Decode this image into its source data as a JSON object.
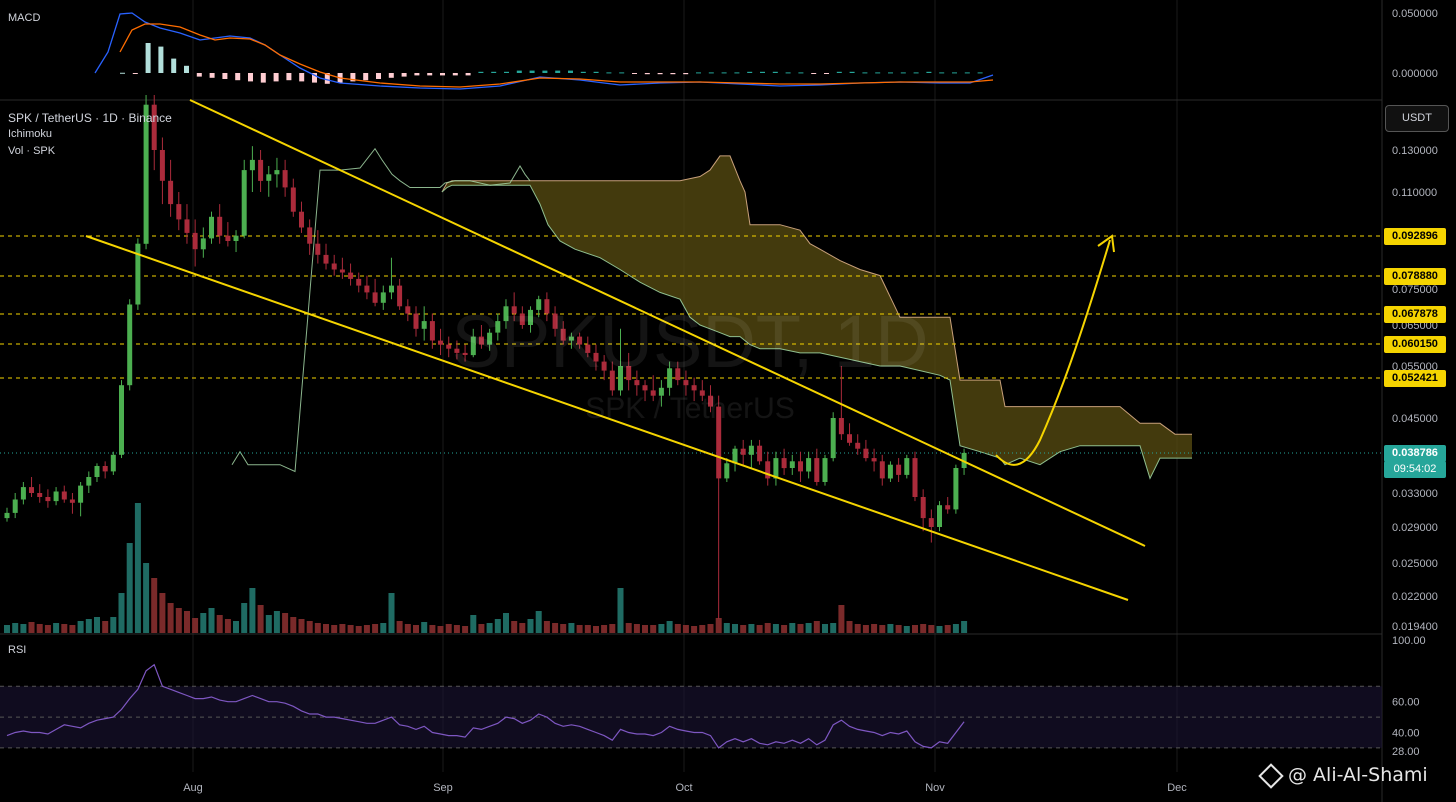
{
  "panels": {
    "macd_label": "MACD",
    "rsi_label": "RSI",
    "main_title": "SPK / TetherUS · 1D · Binance",
    "ichimoku_label": "Ichimoku",
    "vol_label": "Vol · SPK",
    "watermark_symbol": "SPKUSDT, 1D",
    "watermark_name": "SPK / TetherUS",
    "currency_button": "USDT",
    "credit": "@ Ali-Al-Shami"
  },
  "chart_data": {
    "type": "candlestick",
    "title": "SPK / TetherUS · 1D · Binance",
    "price_axis_ticks": [
      "0.130000",
      "0.110000",
      "0.092896",
      "0.078880",
      "0.075000",
      "0.067878",
      "0.065000",
      "0.060150",
      "0.055000",
      "0.052421",
      "0.045000",
      "0.038786",
      "0.033000",
      "0.029000",
      "0.025000",
      "0.022000",
      "0.019400"
    ],
    "price_axis_plain": [
      {
        "v": 0.13,
        "t": "0.130000"
      },
      {
        "v": 0.11,
        "t": "0.110000"
      },
      {
        "v": 0.075,
        "t": "0.075000"
      },
      {
        "v": 0.065,
        "t": "0.065000"
      },
      {
        "v": 0.055,
        "t": "0.055000"
      },
      {
        "v": 0.045,
        "t": "0.045000"
      },
      {
        "v": 0.033,
        "t": "0.033000"
      },
      {
        "v": 0.029,
        "t": "0.029000"
      },
      {
        "v": 0.025,
        "t": "0.025000"
      },
      {
        "v": 0.022,
        "t": "0.022000"
      },
      {
        "v": 0.0194,
        "t": "0.019400"
      }
    ],
    "levels": [
      {
        "v": 0.092896,
        "t": "0.092896"
      },
      {
        "v": 0.07888,
        "t": "0.078880"
      },
      {
        "v": 0.067878,
        "t": "0.067878"
      },
      {
        "v": 0.06015,
        "t": "0.060150"
      },
      {
        "v": 0.052421,
        "t": "0.052421"
      }
    ],
    "current_price": {
      "v": 0.038786,
      "t": "0.038786",
      "countdown": "09:54:02"
    },
    "macd_axis": [
      {
        "v": 0.05,
        "t": "0.050000"
      },
      {
        "v": 0.0,
        "t": "0.000000"
      }
    ],
    "rsi_axis": [
      {
        "v": 100,
        "t": "100.00"
      },
      {
        "v": 60,
        "t": "60.00"
      },
      {
        "v": 40,
        "t": "40.00"
      },
      {
        "v": 28,
        "t": "28.00"
      }
    ],
    "x_ticks": [
      "Aug",
      "Sep",
      "Oct",
      "Nov",
      "Dec"
    ],
    "candles": [
      [
        0.03,
        0.0312,
        0.0296,
        0.0306
      ],
      [
        0.0306,
        0.033,
        0.03,
        0.0322
      ],
      [
        0.0322,
        0.0345,
        0.0316,
        0.0338
      ],
      [
        0.0338,
        0.0352,
        0.0325,
        0.033
      ],
      [
        0.033,
        0.0342,
        0.0318,
        0.0325
      ],
      [
        0.0325,
        0.0335,
        0.0312,
        0.032
      ],
      [
        0.032,
        0.0338,
        0.0315,
        0.0332
      ],
      [
        0.0332,
        0.034,
        0.0318,
        0.0322
      ],
      [
        0.0322,
        0.033,
        0.0305,
        0.0318
      ],
      [
        0.0318,
        0.0345,
        0.0302,
        0.034
      ],
      [
        0.034,
        0.036,
        0.033,
        0.0352
      ],
      [
        0.0352,
        0.0372,
        0.0345,
        0.0368
      ],
      [
        0.0368,
        0.0375,
        0.035,
        0.036
      ],
      [
        0.036,
        0.039,
        0.0355,
        0.0385
      ],
      [
        0.0385,
        0.052,
        0.038,
        0.051
      ],
      [
        0.051,
        0.072,
        0.05,
        0.0705
      ],
      [
        0.0705,
        0.092,
        0.069,
        0.09
      ],
      [
        0.09,
        0.18,
        0.088,
        0.17
      ],
      [
        0.17,
        0.19,
        0.12,
        0.13
      ],
      [
        0.13,
        0.14,
        0.105,
        0.115
      ],
      [
        0.115,
        0.125,
        0.1,
        0.105
      ],
      [
        0.105,
        0.11,
        0.095,
        0.099
      ],
      [
        0.099,
        0.105,
        0.09,
        0.094
      ],
      [
        0.094,
        0.099,
        0.082,
        0.088
      ],
      [
        0.088,
        0.096,
        0.085,
        0.092
      ],
      [
        0.092,
        0.102,
        0.09,
        0.1
      ],
      [
        0.1,
        0.105,
        0.09,
        0.093
      ],
      [
        0.093,
        0.098,
        0.089,
        0.091
      ],
      [
        0.091,
        0.095,
        0.087,
        0.093
      ],
      [
        0.093,
        0.125,
        0.092,
        0.12
      ],
      [
        0.12,
        0.133,
        0.11,
        0.125
      ],
      [
        0.125,
        0.13,
        0.11,
        0.115
      ],
      [
        0.115,
        0.122,
        0.108,
        0.118
      ],
      [
        0.118,
        0.126,
        0.112,
        0.12
      ],
      [
        0.12,
        0.125,
        0.108,
        0.112
      ],
      [
        0.112,
        0.116,
        0.1,
        0.102
      ],
      [
        0.102,
        0.106,
        0.094,
        0.096
      ],
      [
        0.096,
        0.099,
        0.086,
        0.09
      ],
      [
        0.09,
        0.095,
        0.083,
        0.086
      ],
      [
        0.086,
        0.09,
        0.081,
        0.083
      ],
      [
        0.083,
        0.086,
        0.079,
        0.081
      ],
      [
        0.081,
        0.085,
        0.078,
        0.08
      ],
      [
        0.08,
        0.083,
        0.076,
        0.078
      ],
      [
        0.078,
        0.08,
        0.074,
        0.076
      ],
      [
        0.076,
        0.079,
        0.072,
        0.074
      ],
      [
        0.074,
        0.078,
        0.07,
        0.071
      ],
      [
        0.071,
        0.076,
        0.069,
        0.074
      ],
      [
        0.074,
        0.085,
        0.072,
        0.076
      ],
      [
        0.076,
        0.078,
        0.069,
        0.07
      ],
      [
        0.07,
        0.072,
        0.066,
        0.068
      ],
      [
        0.068,
        0.07,
        0.062,
        0.064
      ],
      [
        0.064,
        0.07,
        0.061,
        0.066
      ],
      [
        0.066,
        0.068,
        0.059,
        0.061
      ],
      [
        0.061,
        0.064,
        0.0575,
        0.06
      ],
      [
        0.06,
        0.062,
        0.057,
        0.059
      ],
      [
        0.059,
        0.061,
        0.0565,
        0.058
      ],
      [
        0.058,
        0.06,
        0.056,
        0.0575
      ],
      [
        0.0575,
        0.064,
        0.057,
        0.062
      ],
      [
        0.062,
        0.065,
        0.059,
        0.06
      ],
      [
        0.06,
        0.064,
        0.0585,
        0.063
      ],
      [
        0.063,
        0.068,
        0.061,
        0.066
      ],
      [
        0.066,
        0.072,
        0.064,
        0.07
      ],
      [
        0.07,
        0.074,
        0.066,
        0.068
      ],
      [
        0.068,
        0.07,
        0.064,
        0.065
      ],
      [
        0.065,
        0.07,
        0.063,
        0.069
      ],
      [
        0.069,
        0.073,
        0.067,
        0.072
      ],
      [
        0.072,
        0.074,
        0.066,
        0.068
      ],
      [
        0.068,
        0.07,
        0.062,
        0.064
      ],
      [
        0.064,
        0.066,
        0.06,
        0.061
      ],
      [
        0.061,
        0.063,
        0.059,
        0.062
      ],
      [
        0.062,
        0.063,
        0.059,
        0.06
      ],
      [
        0.06,
        0.062,
        0.057,
        0.058
      ],
      [
        0.058,
        0.06,
        0.054,
        0.056
      ],
      [
        0.056,
        0.0575,
        0.052,
        0.054
      ],
      [
        0.054,
        0.056,
        0.049,
        0.05
      ],
      [
        0.05,
        0.064,
        0.049,
        0.055
      ],
      [
        0.055,
        0.058,
        0.05,
        0.052
      ],
      [
        0.052,
        0.054,
        0.049,
        0.051
      ],
      [
        0.051,
        0.052,
        0.048,
        0.05
      ],
      [
        0.05,
        0.053,
        0.048,
        0.049
      ],
      [
        0.049,
        0.052,
        0.047,
        0.0505
      ],
      [
        0.0505,
        0.056,
        0.049,
        0.0545
      ],
      [
        0.0545,
        0.056,
        0.051,
        0.052
      ],
      [
        0.052,
        0.054,
        0.049,
        0.051
      ],
      [
        0.051,
        0.0525,
        0.048,
        0.05
      ],
      [
        0.05,
        0.052,
        0.048,
        0.049
      ],
      [
        0.049,
        0.051,
        0.046,
        0.047
      ],
      [
        0.047,
        0.049,
        0.02,
        0.035
      ],
      [
        0.035,
        0.038,
        0.0345,
        0.0372
      ],
      [
        0.0372,
        0.04,
        0.036,
        0.0395
      ],
      [
        0.0395,
        0.041,
        0.037,
        0.0385
      ],
      [
        0.0385,
        0.041,
        0.0365,
        0.04
      ],
      [
        0.04,
        0.041,
        0.037,
        0.0375
      ],
      [
        0.0375,
        0.039,
        0.034,
        0.035
      ],
      [
        0.035,
        0.039,
        0.034,
        0.038
      ],
      [
        0.038,
        0.0395,
        0.0355,
        0.0365
      ],
      [
        0.0365,
        0.0385,
        0.0355,
        0.0375
      ],
      [
        0.0375,
        0.039,
        0.0345,
        0.036
      ],
      [
        0.036,
        0.039,
        0.035,
        0.038
      ],
      [
        0.038,
        0.0395,
        0.034,
        0.0345
      ],
      [
        0.0345,
        0.0385,
        0.034,
        0.038
      ],
      [
        0.038,
        0.046,
        0.0375,
        0.045
      ],
      [
        0.045,
        0.055,
        0.041,
        0.042
      ],
      [
        0.042,
        0.044,
        0.04,
        0.0405
      ],
      [
        0.0405,
        0.042,
        0.0385,
        0.0395
      ],
      [
        0.0395,
        0.041,
        0.0375,
        0.038
      ],
      [
        0.038,
        0.0395,
        0.036,
        0.0375
      ],
      [
        0.0375,
        0.0385,
        0.034,
        0.035
      ],
      [
        0.035,
        0.0375,
        0.0345,
        0.037
      ],
      [
        0.037,
        0.038,
        0.0345,
        0.0355
      ],
      [
        0.0355,
        0.0385,
        0.035,
        0.038
      ],
      [
        0.038,
        0.039,
        0.032,
        0.0325
      ],
      [
        0.0325,
        0.0335,
        0.0285,
        0.03
      ],
      [
        0.03,
        0.031,
        0.0272,
        0.029
      ],
      [
        0.029,
        0.032,
        0.0285,
        0.0315
      ],
      [
        0.0315,
        0.0325,
        0.0305,
        0.031
      ],
      [
        0.031,
        0.037,
        0.0305,
        0.0365
      ],
      [
        0.0365,
        0.0395,
        0.0355,
        0.0388
      ]
    ]
  }
}
